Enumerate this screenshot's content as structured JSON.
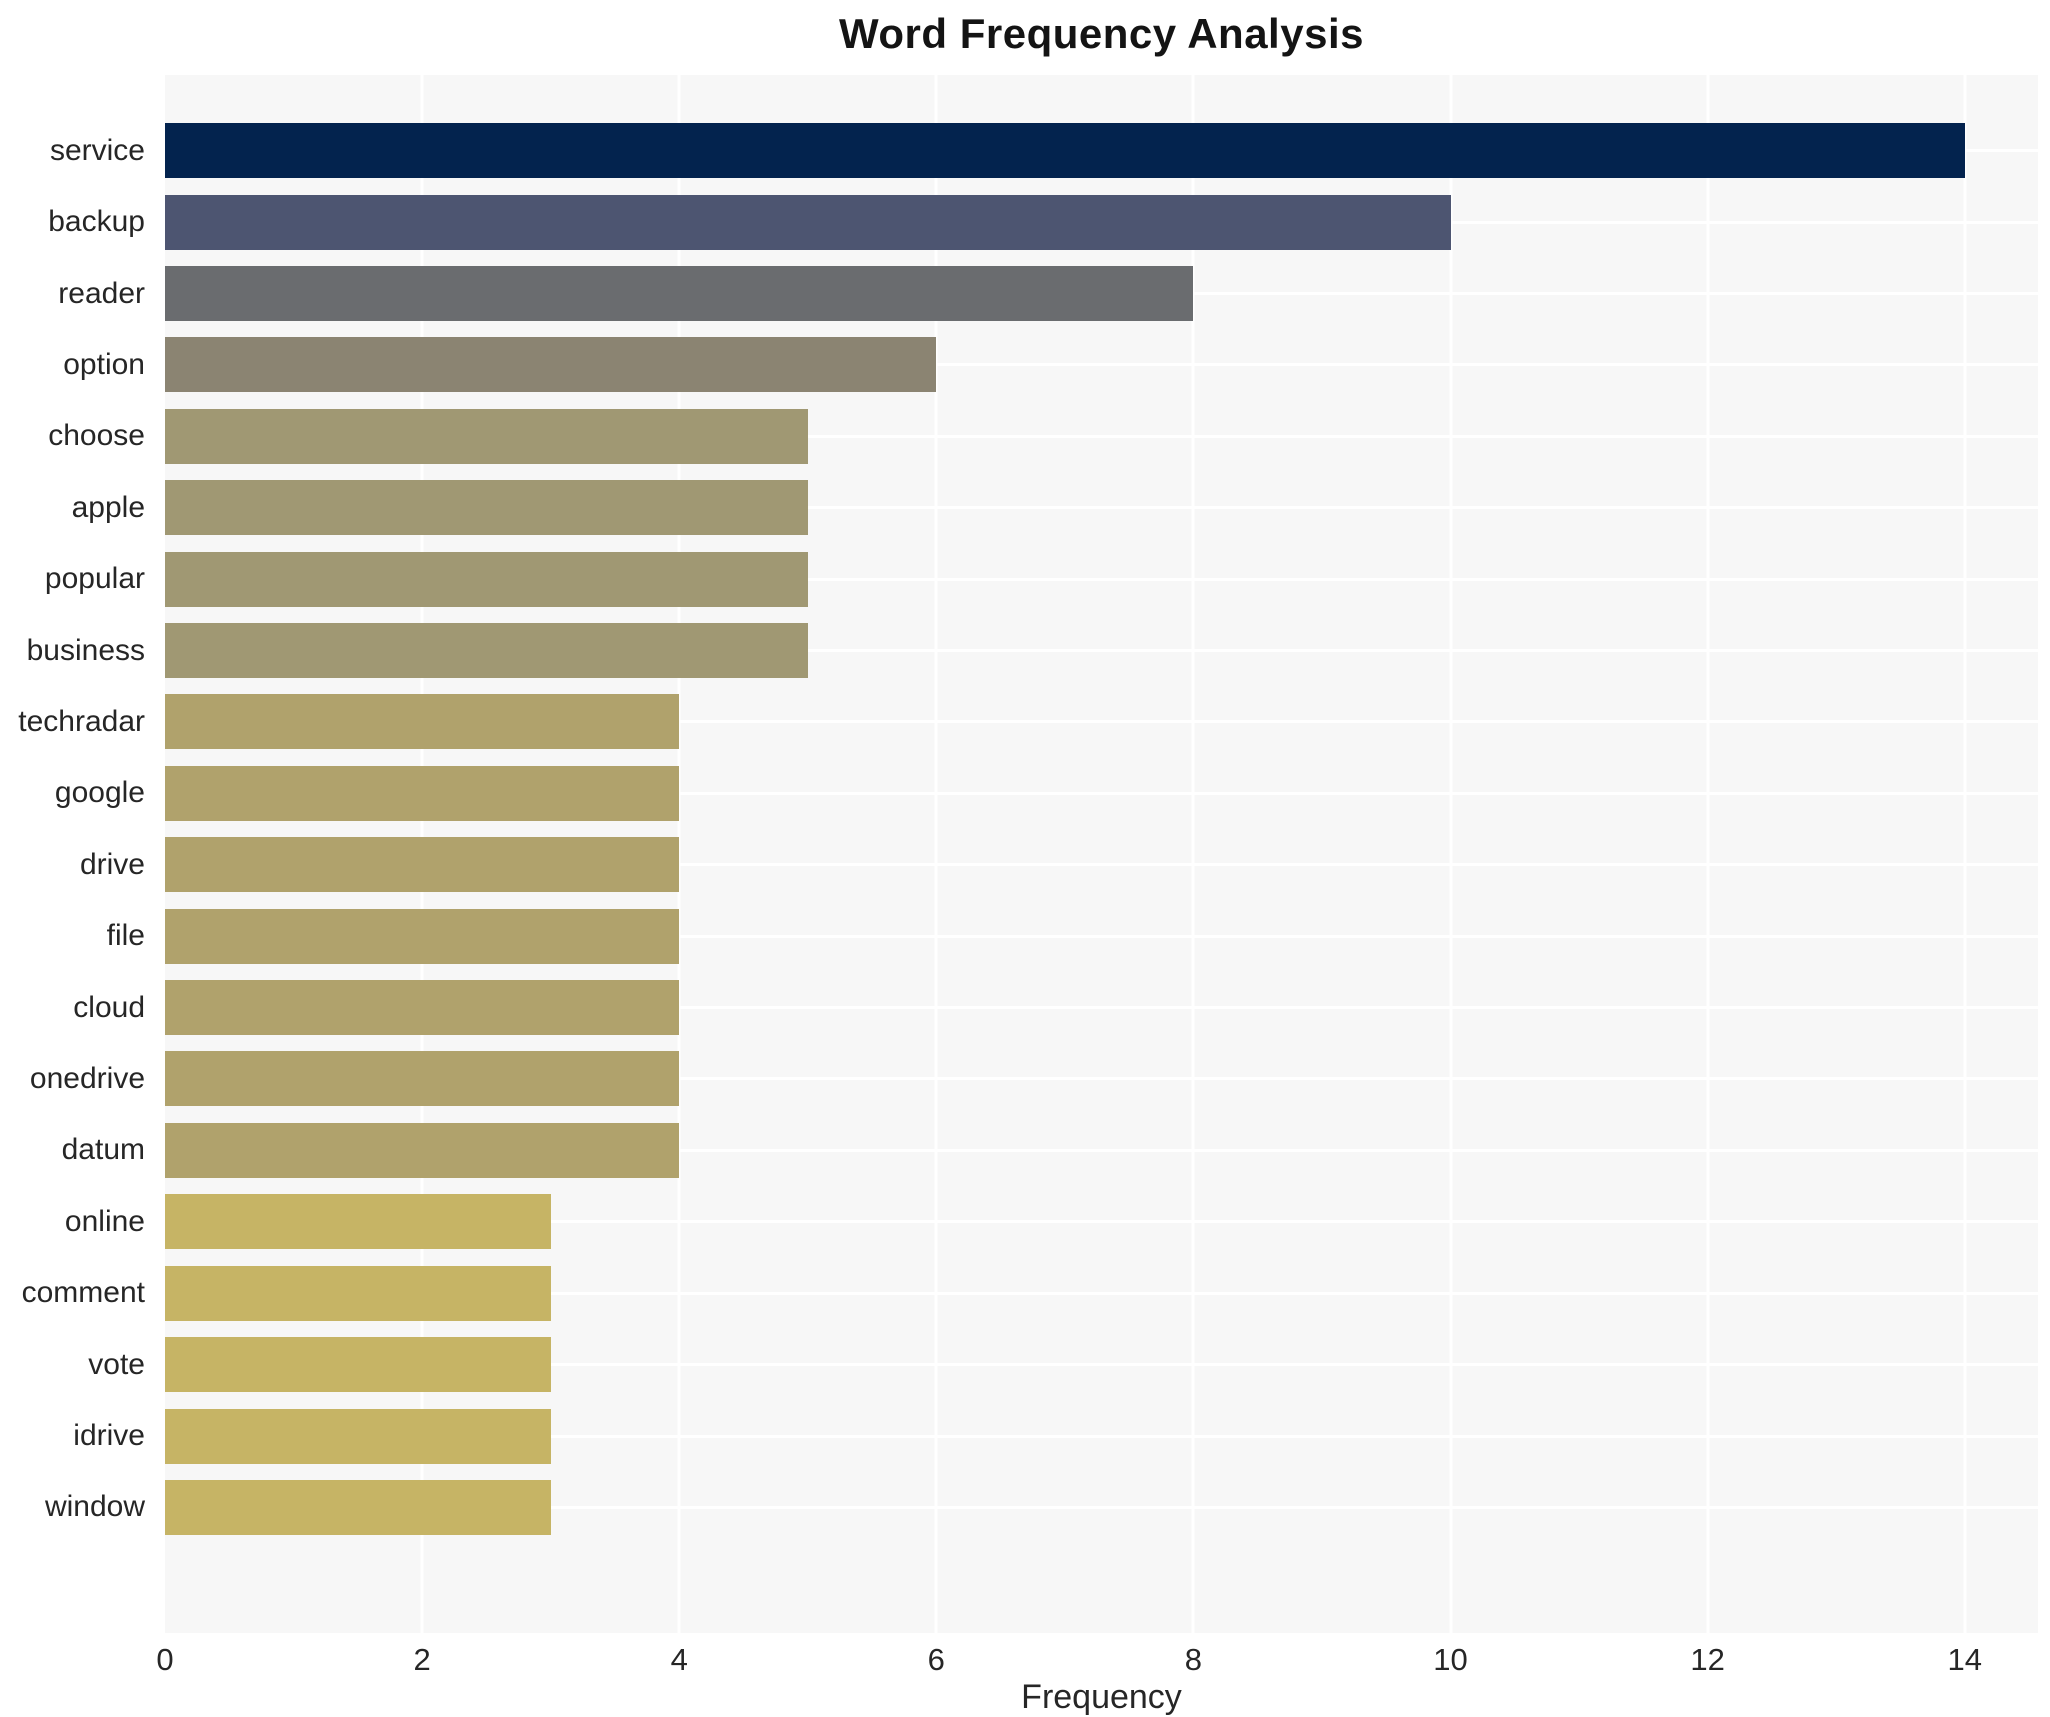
{
  "page": {
    "background": "#ffffff"
  },
  "chart_data": {
    "type": "bar",
    "orientation": "horizontal",
    "title": "Word Frequency Analysis",
    "xlabel": "Frequency",
    "ylabel": "",
    "categories": [
      "service",
      "backup",
      "reader",
      "option",
      "choose",
      "apple",
      "popular",
      "business",
      "techradar",
      "google",
      "drive",
      "file",
      "cloud",
      "onedrive",
      "datum",
      "online",
      "comment",
      "vote",
      "idrive",
      "window"
    ],
    "values": [
      14,
      10,
      8,
      6,
      5,
      5,
      5,
      5,
      4,
      4,
      4,
      4,
      4,
      4,
      4,
      3,
      3,
      3,
      3,
      3
    ],
    "bar_colors": [
      "#03234e",
      "#4d5571",
      "#6a6c6f",
      "#8b8472",
      "#a09873",
      "#a09873",
      "#a09873",
      "#a09873",
      "#b0a26c",
      "#b0a26c",
      "#b0a26c",
      "#b0a26c",
      "#b0a26c",
      "#b0a26c",
      "#b0a26c",
      "#c6b465",
      "#c6b465",
      "#c6b465",
      "#c6b465",
      "#c6b465"
    ],
    "xlim": [
      0,
      14.57
    ],
    "xticks": [
      0,
      2,
      4,
      6,
      8,
      10,
      12,
      14
    ],
    "grid": true,
    "legend": "none",
    "plot_background": "#f7f7f7",
    "gridline_color": "#ffffff",
    "title_color": "#141414",
    "tick_label_color": "#262626"
  }
}
